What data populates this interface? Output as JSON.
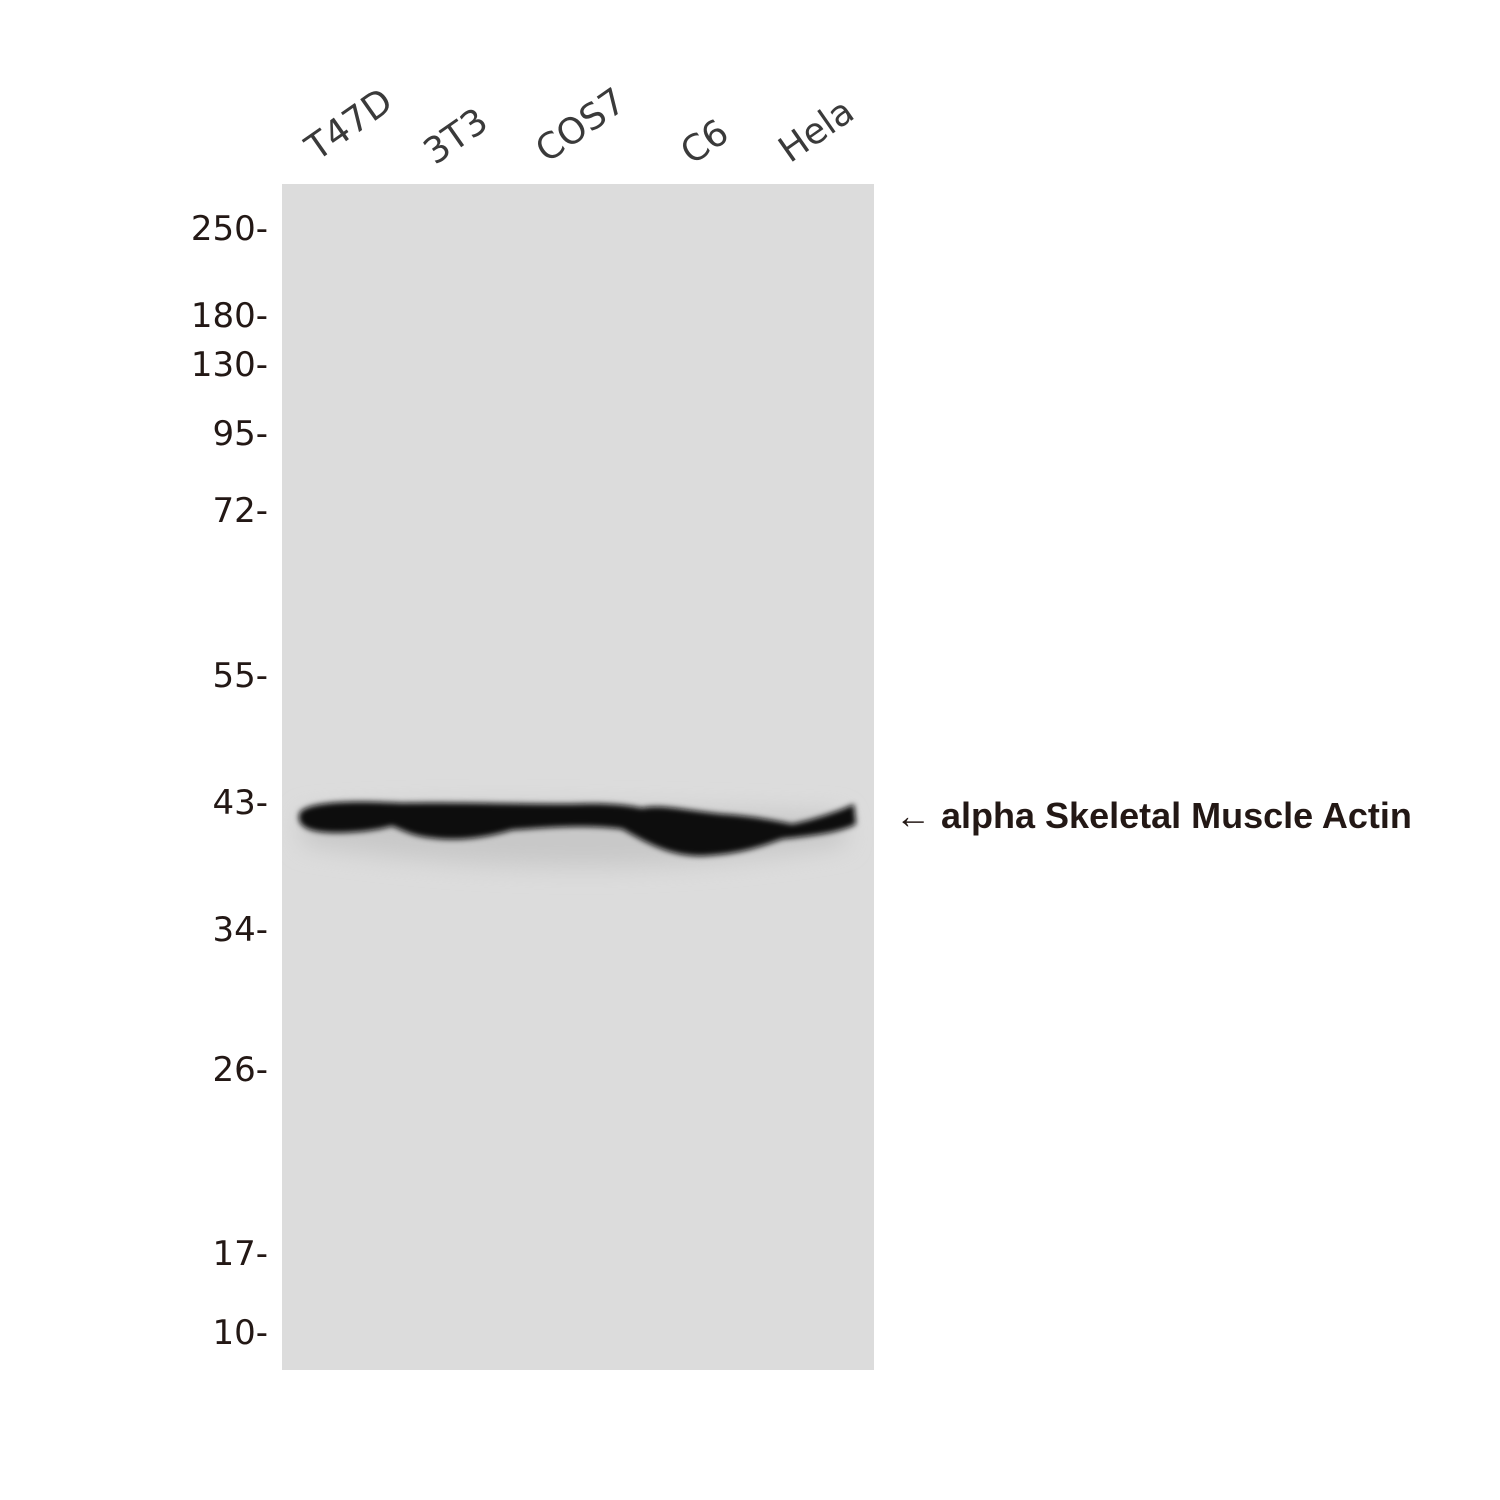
{
  "lanes": [
    "T47D",
    "3T3",
    "COS7",
    "C6",
    "Hela"
  ],
  "markers": [
    "250-",
    "180-",
    "130-",
    "95-",
    "72-",
    "55-",
    "43-",
    "34-",
    "26-",
    "17-",
    "10-"
  ],
  "band_label": "← alpha Skeletal Muscle Actin",
  "colors": {
    "membrane": "#dcdcdc",
    "band": "#0a0a0a",
    "text": "#231815"
  }
}
